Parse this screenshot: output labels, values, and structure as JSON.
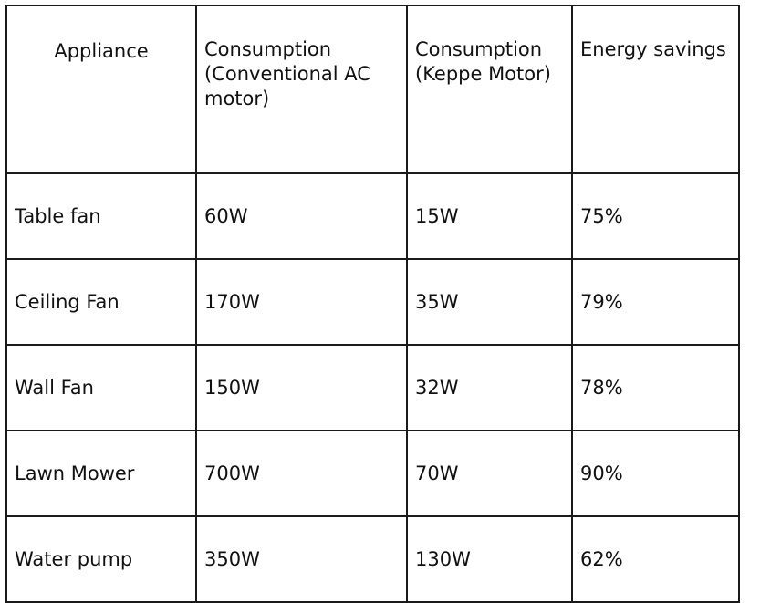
{
  "table": {
    "headers": [
      [
        "Appliance"
      ],
      [
        "Consumption",
        "(Conventional AC",
        "motor)"
      ],
      [
        "Consumption",
        "(Keppe Motor)"
      ],
      [
        "Energy savings"
      ]
    ],
    "rows": [
      [
        "Table fan",
        "60W",
        "15W",
        "75%"
      ],
      [
        "Ceiling Fan",
        "170W",
        "35W",
        "79%"
      ],
      [
        "Wall Fan",
        "150W",
        "32W",
        "78%"
      ],
      [
        "Lawn Mower",
        "700W",
        "70W",
        "90%"
      ],
      [
        "Water pump",
        "350W",
        "130W",
        "62%"
      ]
    ]
  }
}
